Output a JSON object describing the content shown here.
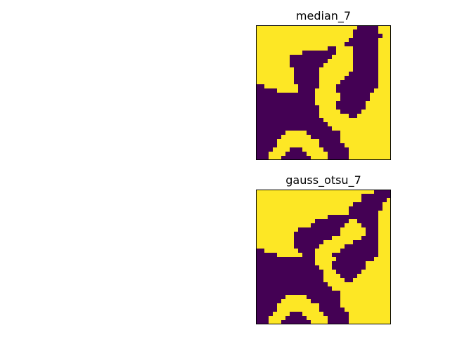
{
  "chart_data": [
    {
      "type": "heatmap",
      "title": "median_7",
      "colors": {
        "0": "#440154",
        "1": "#fde725"
      },
      "xticks": [],
      "yticks": [],
      "grid": false,
      "rows": [
        "11111111111111111111111100000111",
        "11111111111111111111111000000111",
        "11111111111111111111111000000011",
        "11111111111111111111110000000111",
        "11111111111111111111100000000111",
        "11111111111111111001111000000111",
        "11111111111000000001111000000111",
        "11111111000000000011111000000111",
        "11111111000000000111111000000111",
        "11111111000000001111111000000111",
        "11111111100000011111111000000111",
        "11111111100000011111110000000111",
        "11111111100000011111100000000111",
        "11111111100000011111000000000111",
        "00111111110000011110000000000111",
        "00000111110000111110000000001111",
        "00000000000000111111000000011111",
        "00000000000000111111000000011111",
        "00000000000000111110000000111111",
        "00000000000000011110000000111111",
        "00000000000000011111000001111111",
        "00000000000000011111110011111111",
        "00000000000000001111111111111111",
        "00000000000000000111111111111111",
        "00000000000000000011111111111111",
        "00000001111100000000111111111111",
        "00000011111110000000111111111111",
        "00000111111111100000111111111111",
        "00000111111111100000011111111111",
        "00001111000111110000001111111111",
        "00011110000011111000001111111111",
        "00011100000001111000001111111111"
      ]
    },
    {
      "type": "heatmap",
      "title": "gauss_otsu_7",
      "colors": {
        "0": "#440154",
        "1": "#fde725"
      },
      "xticks": [],
      "yticks": [],
      "grid": false,
      "rows": [
        "11111111111111111111111111110000",
        "11111111111111111111111110000000",
        "11111111111111111111111110000001",
        "11111111111111111111111000000011",
        "11111111111111111111110000000011",
        "11111111111111111111110000000111",
        "11111111111111111000000000000111",
        "11111111111111000000001100000111",
        "11111111111110000000011110000111",
        "11111111110000000000111111000111",
        "11111111100000000000111111000111",
        "11111111100000000011111110000111",
        "11111111100000001111111000000111",
        "11111111100000011111100000000111",
        "00111111110000111111000000000111",
        "00000111111000111100000000000111",
        "00000000000000111110000000001111",
        "00000000000000111100000000111111",
        "00000000000000011100000000111111",
        "00000000000000001110000001111111",
        "00000000000000001111000011111111",
        "00000000000000001111100111111111",
        "00000000000000000111111111111111",
        "00000000000000000011111111111111",
        "00000000000000000000111111111111",
        "00000001111100000000111111111111",
        "00000011111110000000111111111111",
        "00000111111111100000111111111111",
        "00000111111111100000011111111111",
        "00001111000111110000001111111111",
        "00011110000011111000001111111111",
        "00011100000001111000001111111111"
      ]
    }
  ]
}
